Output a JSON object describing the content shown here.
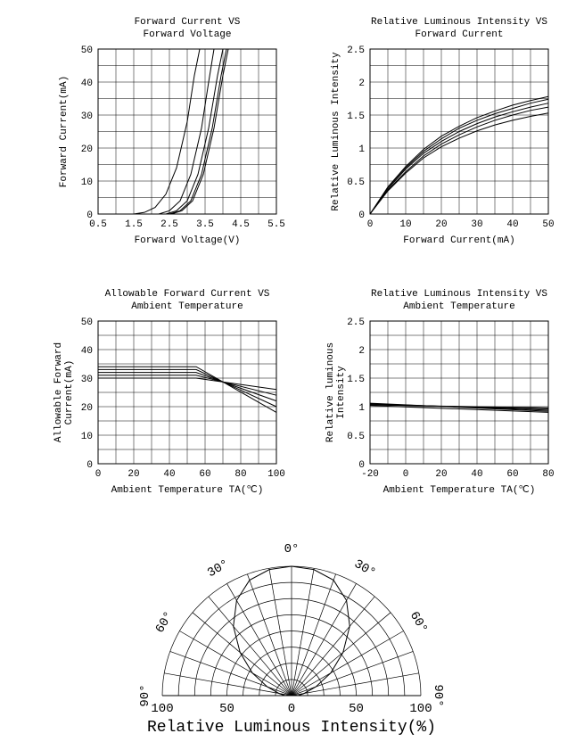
{
  "colors": {
    "background": "#ffffff",
    "grid": "#000000",
    "axis": "#000000",
    "line": "#000000",
    "text": "#000000"
  },
  "chart1": {
    "type": "line",
    "title_line1": "Forward Current VS",
    "title_line2": "Forward Voltage",
    "xlabel": "Forward  Voltage(V)",
    "ylabel": "Forward Current(mA)",
    "xlim": [
      0.5,
      5.5
    ],
    "ylim": [
      0,
      50
    ],
    "xticks": [
      0.5,
      1.5,
      2.5,
      3.5,
      4.5,
      5.5
    ],
    "yticks": [
      0,
      10,
      20,
      30,
      40,
      50
    ],
    "x_minor_step": 0.5,
    "y_minor_step": 5,
    "series": [
      {
        "points": [
          [
            1.5,
            0
          ],
          [
            1.8,
            0.5
          ],
          [
            2.1,
            2
          ],
          [
            2.4,
            6
          ],
          [
            2.7,
            14
          ],
          [
            3.0,
            28
          ],
          [
            3.2,
            42
          ],
          [
            3.35,
            50
          ]
        ]
      },
      {
        "points": [
          [
            2.2,
            0
          ],
          [
            2.5,
            1
          ],
          [
            2.8,
            4
          ],
          [
            3.1,
            12
          ],
          [
            3.4,
            26
          ],
          [
            3.6,
            40
          ],
          [
            3.75,
            50
          ]
        ]
      },
      {
        "points": [
          [
            2.4,
            0
          ],
          [
            2.7,
            1
          ],
          [
            3.0,
            4
          ],
          [
            3.3,
            12
          ],
          [
            3.6,
            26
          ],
          [
            3.85,
            42
          ],
          [
            4.0,
            50
          ]
        ]
      },
      {
        "points": [
          [
            2.5,
            0
          ],
          [
            2.8,
            1
          ],
          [
            3.1,
            4
          ],
          [
            3.4,
            12
          ],
          [
            3.7,
            26
          ],
          [
            3.95,
            42
          ],
          [
            4.1,
            50
          ]
        ]
      },
      {
        "points": [
          [
            2.55,
            0
          ],
          [
            2.85,
            1
          ],
          [
            3.15,
            4
          ],
          [
            3.45,
            12
          ],
          [
            3.75,
            26
          ],
          [
            4.0,
            42
          ],
          [
            4.15,
            50
          ]
        ]
      }
    ]
  },
  "chart2": {
    "type": "line",
    "title_line1": "Relative Luminous Intensity  VS",
    "title_line2": "Forward Current",
    "xlabel": "Forward  Current(mA)",
    "ylabel": "Relative Luminous Intensity",
    "xlim": [
      0,
      50
    ],
    "ylim": [
      0,
      2.5
    ],
    "xticks": [
      0,
      10,
      20,
      30,
      40,
      50
    ],
    "yticks": [
      0,
      0.5,
      1.0,
      1.5,
      2.0,
      2.5
    ],
    "x_minor_step": 5,
    "y_minor_step": 0.25,
    "series": [
      {
        "points": [
          [
            0,
            0
          ],
          [
            5,
            0.35
          ],
          [
            10,
            0.62
          ],
          [
            15,
            0.85
          ],
          [
            20,
            1.02
          ],
          [
            25,
            1.15
          ],
          [
            30,
            1.26
          ],
          [
            35,
            1.35
          ],
          [
            40,
            1.42
          ],
          [
            45,
            1.48
          ],
          [
            50,
            1.53
          ]
        ]
      },
      {
        "points": [
          [
            0,
            0
          ],
          [
            5,
            0.38
          ],
          [
            10,
            0.68
          ],
          [
            15,
            0.92
          ],
          [
            20,
            1.1
          ],
          [
            25,
            1.25
          ],
          [
            30,
            1.37
          ],
          [
            35,
            1.47
          ],
          [
            40,
            1.55
          ],
          [
            45,
            1.62
          ],
          [
            50,
            1.68
          ]
        ]
      },
      {
        "points": [
          [
            0,
            0
          ],
          [
            5,
            0.4
          ],
          [
            10,
            0.7
          ],
          [
            15,
            0.95
          ],
          [
            20,
            1.14
          ],
          [
            25,
            1.3
          ],
          [
            30,
            1.42
          ],
          [
            35,
            1.52
          ],
          [
            40,
            1.6
          ],
          [
            45,
            1.68
          ],
          [
            50,
            1.74
          ]
        ]
      },
      {
        "points": [
          [
            0,
            0
          ],
          [
            5,
            0.36
          ],
          [
            10,
            0.64
          ],
          [
            15,
            0.88
          ],
          [
            20,
            1.06
          ],
          [
            25,
            1.2
          ],
          [
            30,
            1.32
          ],
          [
            35,
            1.42
          ],
          [
            40,
            1.5
          ],
          [
            45,
            1.57
          ],
          [
            50,
            1.62
          ]
        ]
      },
      {
        "points": [
          [
            0,
            0
          ],
          [
            5,
            0.41
          ],
          [
            10,
            0.72
          ],
          [
            15,
            0.98
          ],
          [
            20,
            1.18
          ],
          [
            25,
            1.33
          ],
          [
            30,
            1.46
          ],
          [
            35,
            1.56
          ],
          [
            40,
            1.65
          ],
          [
            45,
            1.72
          ],
          [
            50,
            1.78
          ]
        ]
      }
    ]
  },
  "chart3": {
    "type": "line",
    "title_line1": "Allowable Forward Current VS",
    "title_line2": "Ambient Temperature",
    "xlabel": "Ambient Temperature TA(℃)",
    "ylabel_line1": "Allowable Forward",
    "ylabel_line2": "Current(mA)",
    "xlim": [
      0,
      100
    ],
    "ylim": [
      0,
      50
    ],
    "xticks": [
      0,
      20,
      40,
      60,
      80,
      100
    ],
    "yticks": [
      0,
      10,
      20,
      30,
      40,
      50
    ],
    "x_minor_step": 10,
    "y_minor_step": 5,
    "series": [
      {
        "points": [
          [
            0,
            33
          ],
          [
            55,
            33
          ],
          [
            100,
            20
          ]
        ]
      },
      {
        "points": [
          [
            0,
            32
          ],
          [
            55,
            32
          ],
          [
            100,
            22
          ]
        ]
      },
      {
        "points": [
          [
            0,
            31
          ],
          [
            55,
            31
          ],
          [
            100,
            24
          ]
        ]
      },
      {
        "points": [
          [
            0,
            30
          ],
          [
            55,
            30
          ],
          [
            100,
            26
          ]
        ]
      },
      {
        "points": [
          [
            0,
            34
          ],
          [
            55,
            34
          ],
          [
            100,
            18
          ]
        ]
      }
    ]
  },
  "chart4": {
    "type": "line",
    "title_line1": "Relative Luminous Intensity VS",
    "title_line2": "Ambient Temperature",
    "xlabel": "Ambient Temperature TA(℃)",
    "ylabel_line1": "Relative luminous",
    "ylabel_line2": "Intensity",
    "xlim": [
      -20,
      80
    ],
    "ylim": [
      0,
      2.5
    ],
    "xticks": [
      -20,
      0,
      20,
      40,
      60,
      80
    ],
    "yticks": [
      0,
      0.5,
      1.0,
      1.5,
      2.0,
      2.5
    ],
    "x_minor_step": 10,
    "y_minor_step": 0.25,
    "series": [
      {
        "points": [
          [
            -20,
            1.06
          ],
          [
            80,
            0.92
          ]
        ]
      },
      {
        "points": [
          [
            -20,
            1.05
          ],
          [
            80,
            0.94
          ]
        ]
      },
      {
        "points": [
          [
            -20,
            1.04
          ],
          [
            80,
            0.96
          ]
        ]
      },
      {
        "points": [
          [
            -20,
            1.03
          ],
          [
            80,
            0.98
          ]
        ]
      },
      {
        "points": [
          [
            -20,
            1.02
          ],
          [
            80,
            0.9
          ]
        ]
      }
    ]
  },
  "polar": {
    "type": "polar",
    "title": "Relative Luminous Intensity(%)",
    "angle_labels": [
      "0°",
      "30°",
      "30°",
      "60°",
      "60°",
      "90°",
      "90°"
    ],
    "radial_labels": [
      "100",
      "50",
      "0",
      "50",
      "100"
    ],
    "radial_rings": 8,
    "angle_step_deg": 10,
    "curve": [
      [
        -90,
        0.05
      ],
      [
        -80,
        0.1
      ],
      [
        -70,
        0.2
      ],
      [
        -60,
        0.35
      ],
      [
        -50,
        0.52
      ],
      [
        -40,
        0.7
      ],
      [
        -30,
        0.85
      ],
      [
        -20,
        0.95
      ],
      [
        -10,
        0.99
      ],
      [
        0,
        1.0
      ],
      [
        10,
        0.99
      ],
      [
        20,
        0.95
      ],
      [
        30,
        0.85
      ],
      [
        40,
        0.7
      ],
      [
        50,
        0.52
      ],
      [
        60,
        0.35
      ],
      [
        70,
        0.2
      ],
      [
        80,
        0.1
      ],
      [
        90,
        0.05
      ]
    ]
  }
}
